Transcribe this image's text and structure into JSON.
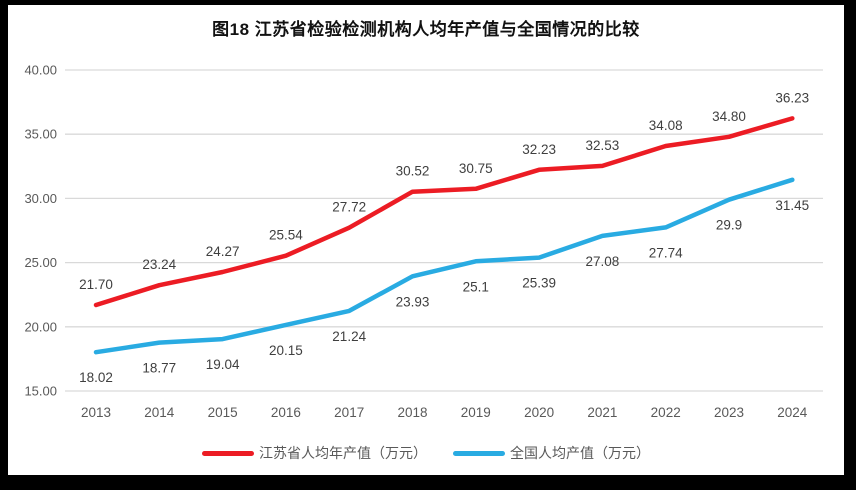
{
  "title": "图18  江苏省检验检测机构人均年产值与全国情况的比较",
  "colors": {
    "jiangsu_red": "#EC1C24",
    "national_blue": "#29ABE2",
    "grid": "#D9D9D9",
    "axis_text": "#595959",
    "data_label_text": "#3F3F3F",
    "frame": "#000000",
    "panel": "#FFFFFF"
  },
  "chart_data": {
    "type": "line",
    "title": "图18  江苏省检验检测机构人均年产值与全国情况的比较",
    "categories": [
      "2013",
      "2014",
      "2015",
      "2016",
      "2017",
      "2018",
      "2019",
      "2020",
      "2021",
      "2022",
      "2023",
      "2024"
    ],
    "series": [
      {
        "name": "江苏省人均年产值（万元）",
        "color": "#EC1C24",
        "values": [
          21.7,
          23.24,
          24.27,
          25.54,
          27.72,
          30.52,
          30.75,
          32.23,
          32.53,
          34.08,
          34.8,
          36.23
        ],
        "labels": [
          "21.70",
          "23.24",
          "24.27",
          "25.54",
          "27.72",
          "30.52",
          "30.75",
          "32.23",
          "32.53",
          "34.08",
          "34.80",
          "36.23"
        ],
        "label_position": "above"
      },
      {
        "name": "全国人均产值（万元）",
        "color": "#29ABE2",
        "values": [
          18.02,
          18.77,
          19.04,
          20.15,
          21.24,
          23.93,
          25.1,
          25.39,
          27.08,
          27.74,
          29.9,
          31.45
        ],
        "labels": [
          "18.02",
          "18.77",
          "19.04",
          "20.15",
          "21.24",
          "23.93",
          "25.1",
          "25.39",
          "27.08",
          "27.74",
          "29.9",
          "31.45"
        ],
        "label_position": "below"
      }
    ],
    "xlabel": "",
    "ylabel": "",
    "ylim": [
      15,
      40
    ],
    "ytick_step": 5,
    "ytick_labels": [
      "15.00",
      "20.00",
      "25.00",
      "30.00",
      "35.00",
      "40.00"
    ],
    "grid": true,
    "legend_position": "bottom"
  }
}
